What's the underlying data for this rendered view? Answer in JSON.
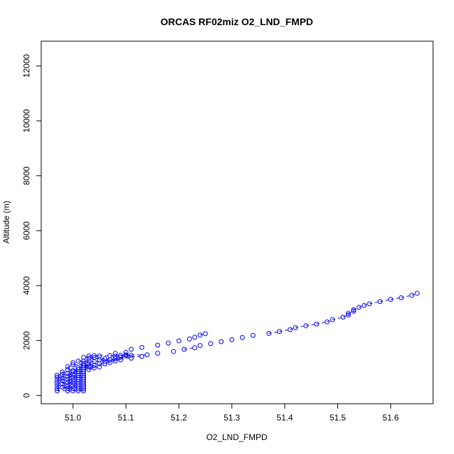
{
  "chart_data": {
    "type": "scatter",
    "title": "ORCAS RF02miz O2_LND_FMPD",
    "xlabel": "O2_LND_FMPD",
    "ylabel": "Altitude (m)",
    "xlim": [
      50.94,
      51.68
    ],
    "ylim": [
      -300,
      12900
    ],
    "xticks": [
      51.0,
      51.1,
      51.2,
      51.3,
      51.4,
      51.5,
      51.6
    ],
    "xtick_labels": [
      "51.0",
      "51.1",
      "51.2",
      "51.3",
      "51.4",
      "51.5",
      "51.6"
    ],
    "yticks": [
      0,
      2000,
      4000,
      6000,
      8000,
      10000,
      12000
    ],
    "ytick_labels": [
      "0",
      "2000",
      "4000",
      "6000",
      "8000",
      "10000",
      "12000"
    ],
    "grid": false,
    "series": [
      {
        "color": "#0000ff",
        "marker": "open-circle",
        "line": "dashed",
        "points": [
          [
            50.97,
            170
          ],
          [
            50.97,
            260
          ],
          [
            50.97,
            360
          ],
          [
            50.97,
            460
          ],
          [
            50.97,
            560
          ],
          [
            50.97,
            660
          ],
          [
            50.97,
            740
          ],
          [
            50.98,
            300
          ],
          [
            50.98,
            420
          ],
          [
            50.98,
            540
          ],
          [
            50.98,
            640
          ],
          [
            50.98,
            760
          ],
          [
            50.98,
            850
          ],
          [
            50.99,
            170
          ],
          [
            50.99,
            260
          ],
          [
            50.99,
            360
          ],
          [
            50.99,
            470
          ],
          [
            50.99,
            580
          ],
          [
            50.99,
            690
          ],
          [
            50.99,
            800
          ],
          [
            50.99,
            940
          ],
          [
            50.99,
            1050
          ],
          [
            51.0,
            170
          ],
          [
            51.0,
            260
          ],
          [
            51.0,
            360
          ],
          [
            51.0,
            460
          ],
          [
            51.0,
            560
          ],
          [
            51.0,
            660
          ],
          [
            51.0,
            760
          ],
          [
            51.0,
            860
          ],
          [
            51.0,
            910
          ],
          [
            51.0,
            1120
          ],
          [
            51.0,
            1190
          ],
          [
            51.01,
            170
          ],
          [
            51.01,
            240
          ],
          [
            51.01,
            310
          ],
          [
            51.01,
            380
          ],
          [
            51.01,
            450
          ],
          [
            51.01,
            520
          ],
          [
            51.01,
            590
          ],
          [
            51.01,
            660
          ],
          [
            51.01,
            730
          ],
          [
            51.01,
            800
          ],
          [
            51.01,
            870
          ],
          [
            51.01,
            940
          ],
          [
            51.01,
            1010
          ],
          [
            51.01,
            1250
          ],
          [
            51.02,
            170
          ],
          [
            51.02,
            240
          ],
          [
            51.02,
            310
          ],
          [
            51.02,
            380
          ],
          [
            51.02,
            450
          ],
          [
            51.02,
            520
          ],
          [
            51.02,
            590
          ],
          [
            51.02,
            660
          ],
          [
            51.02,
            730
          ],
          [
            51.02,
            800
          ],
          [
            51.02,
            870
          ],
          [
            51.02,
            940
          ],
          [
            51.02,
            1010
          ],
          [
            51.02,
            1080
          ],
          [
            51.02,
            1150
          ],
          [
            51.02,
            1250
          ],
          [
            51.02,
            1390
          ],
          [
            51.03,
            950
          ],
          [
            51.03,
            1050
          ],
          [
            51.03,
            1150
          ],
          [
            51.03,
            1250
          ],
          [
            51.03,
            1350
          ],
          [
            51.03,
            1440
          ],
          [
            51.04,
            1000
          ],
          [
            51.04,
            1100
          ],
          [
            51.04,
            1240
          ],
          [
            51.04,
            1380
          ],
          [
            51.04,
            1450
          ],
          [
            51.05,
            1040
          ],
          [
            51.05,
            1150
          ],
          [
            51.05,
            1300
          ],
          [
            51.05,
            1440
          ],
          [
            51.06,
            1150
          ],
          [
            51.06,
            1230
          ],
          [
            51.06,
            1340
          ],
          [
            51.07,
            1200
          ],
          [
            51.07,
            1300
          ],
          [
            51.07,
            1450
          ],
          [
            51.08,
            1250
          ],
          [
            51.08,
            1350
          ],
          [
            51.08,
            1430
          ],
          [
            51.08,
            1530
          ],
          [
            51.09,
            1300
          ],
          [
            51.09,
            1400
          ],
          [
            51.09,
            1460
          ],
          [
            51.1,
            1450
          ],
          [
            51.1,
            1480
          ],
          [
            51.1,
            1570
          ],
          [
            51.11,
            1360
          ],
          [
            51.11,
            1460
          ],
          [
            51.11,
            1680
          ],
          [
            51.13,
            1420
          ],
          [
            51.13,
            1750
          ],
          [
            51.14,
            1480
          ],
          [
            51.16,
            1540
          ],
          [
            51.16,
            1830
          ],
          [
            51.18,
            1910
          ],
          [
            51.19,
            1600
          ],
          [
            51.2,
            1990
          ],
          [
            51.21,
            1680
          ],
          [
            51.22,
            2060
          ],
          [
            51.23,
            1740
          ],
          [
            51.23,
            2120
          ],
          [
            51.24,
            1820
          ],
          [
            51.24,
            2200
          ],
          [
            51.25,
            2250
          ],
          [
            51.26,
            1890
          ],
          [
            51.28,
            1960
          ],
          [
            51.3,
            2030
          ],
          [
            51.32,
            2110
          ],
          [
            51.34,
            2190
          ],
          [
            51.37,
            2260
          ],
          [
            51.39,
            2330
          ],
          [
            51.41,
            2400
          ],
          [
            51.42,
            2470
          ],
          [
            51.44,
            2540
          ],
          [
            51.46,
            2600
          ],
          [
            51.48,
            2680
          ],
          [
            51.49,
            2760
          ],
          [
            51.51,
            2850
          ],
          [
            51.52,
            2930
          ],
          [
            51.52,
            2990
          ],
          [
            51.53,
            3070
          ],
          [
            51.53,
            3120
          ],
          [
            51.54,
            3210
          ],
          [
            51.55,
            3280
          ],
          [
            51.56,
            3340
          ],
          [
            51.58,
            3420
          ],
          [
            51.6,
            3500
          ],
          [
            51.62,
            3560
          ],
          [
            51.64,
            3650
          ],
          [
            51.65,
            3720
          ]
        ]
      }
    ]
  }
}
